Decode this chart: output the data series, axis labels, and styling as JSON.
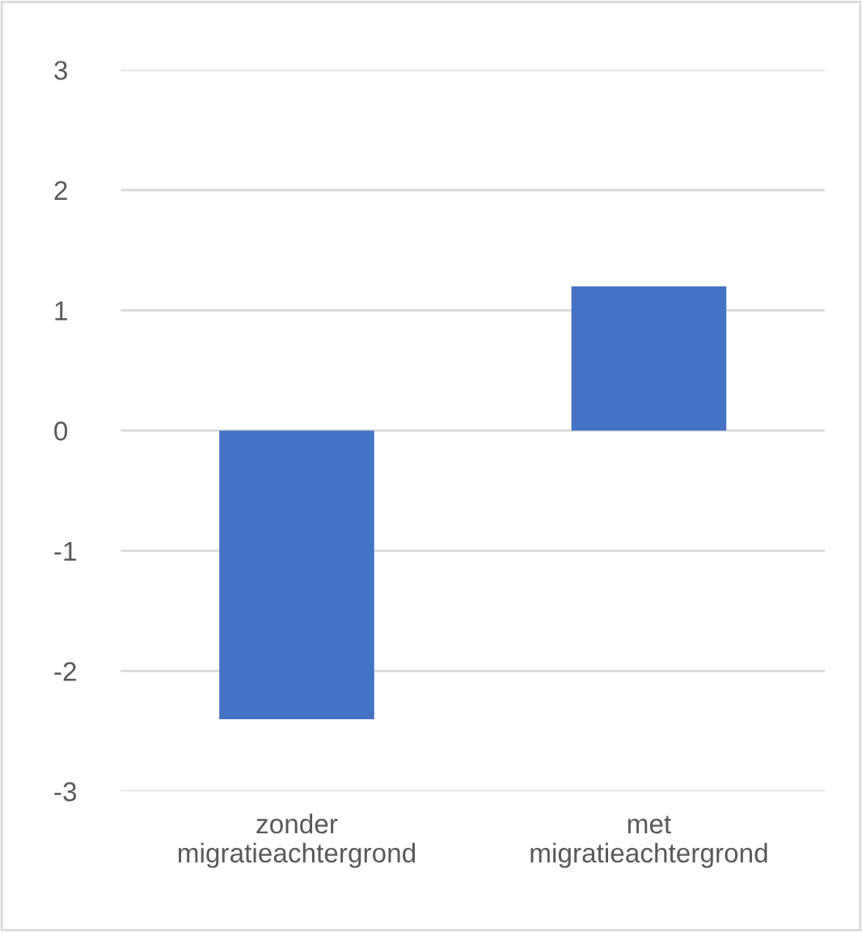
{
  "chart_data": {
    "type": "bar",
    "categories": [
      "zonder migratieachtergrond",
      "met migratieachtergrond"
    ],
    "values": [
      -2.4,
      1.2
    ],
    "color": "#4472c4",
    "ylim": [
      -3,
      3
    ],
    "yticks": [
      -3,
      -2,
      -1,
      0,
      1,
      2,
      3
    ],
    "grid": "y",
    "legend": false
  }
}
